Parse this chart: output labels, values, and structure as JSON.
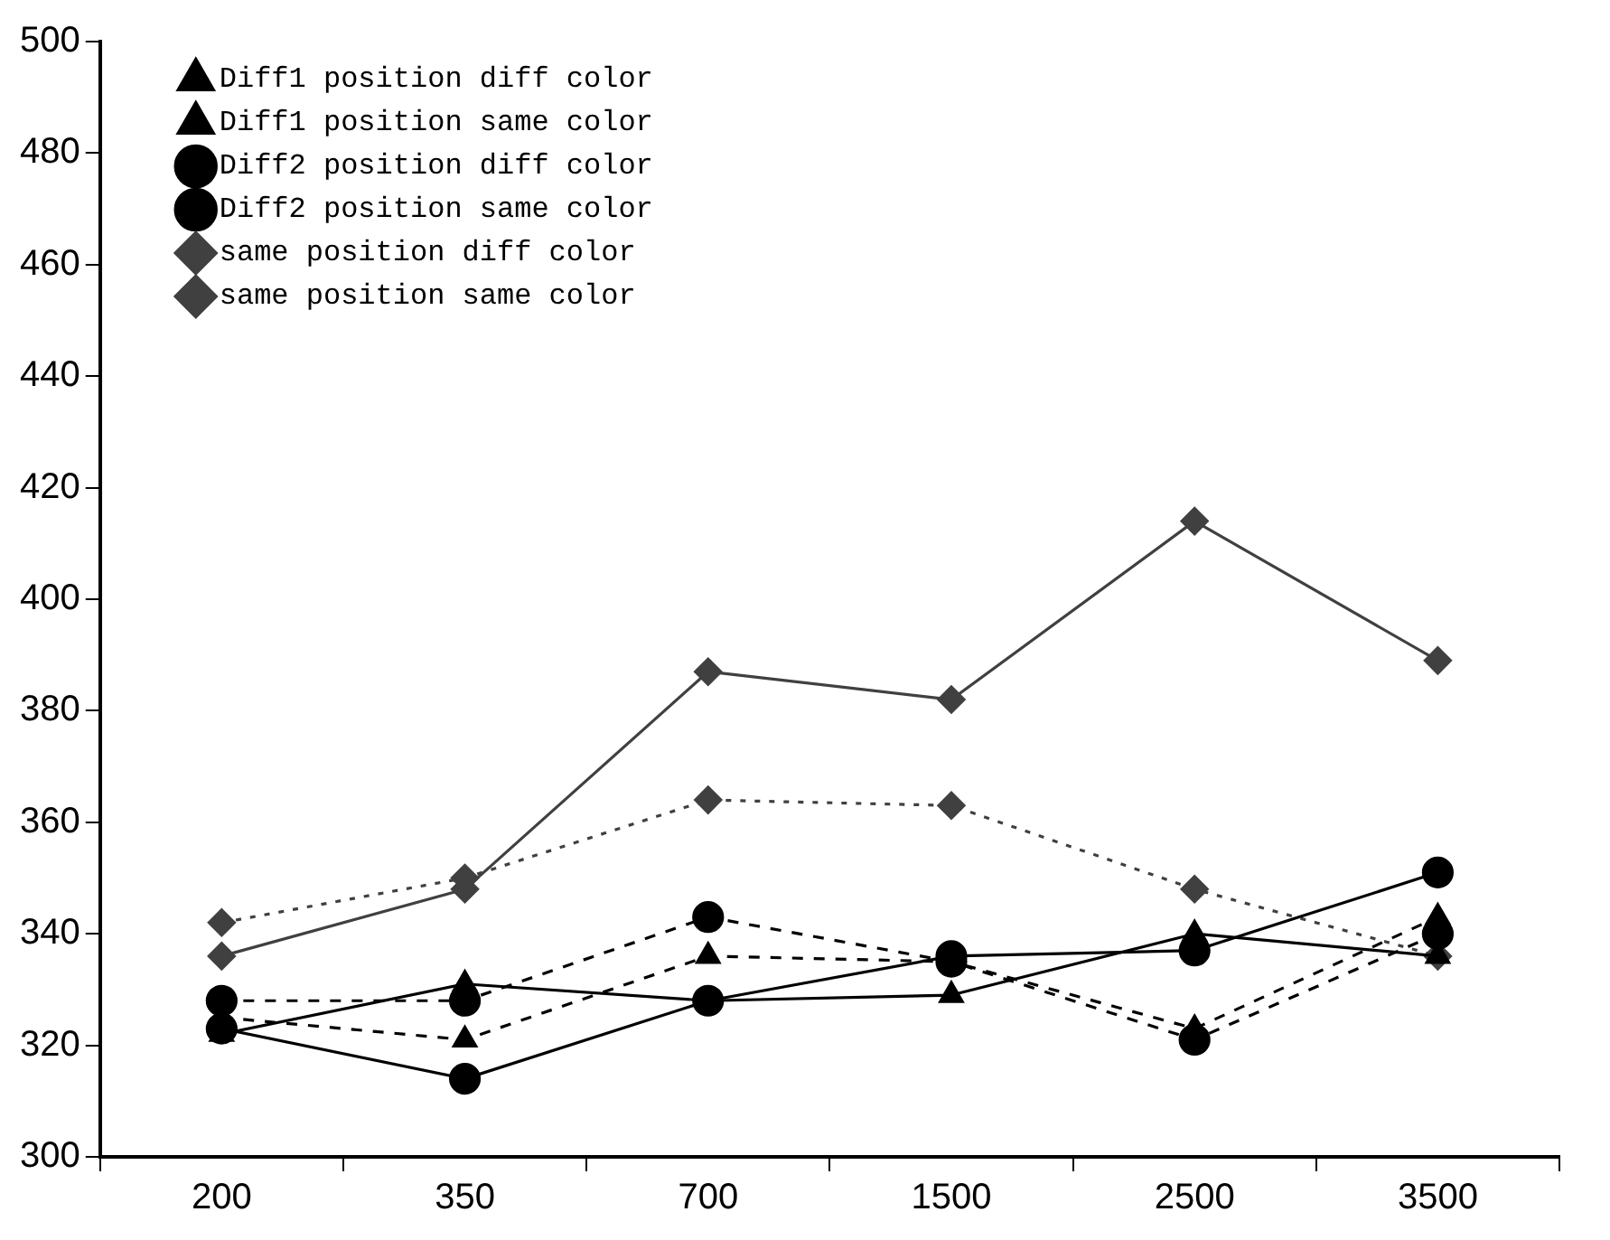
{
  "chart_data": {
    "type": "line",
    "categories": [
      "200",
      "350",
      "700",
      "1500",
      "2500",
      "3500"
    ],
    "ylim": [
      300,
      500
    ],
    "yticks": [
      300,
      320,
      340,
      360,
      380,
      400,
      420,
      440,
      460,
      480,
      500
    ],
    "grid": false,
    "legend": "top left",
    "series": [
      {
        "name": "Diff1 position diff color",
        "color": "#000000",
        "marker": "triangle",
        "line_style": "dashed",
        "values": [
          325,
          321,
          336,
          335,
          323,
          343
        ]
      },
      {
        "name": "Diff1 position same color",
        "color": "#000000",
        "marker": "triangle",
        "line_style": "solid",
        "values": [
          322,
          331,
          328,
          329,
          340,
          336
        ]
      },
      {
        "name": "Diff2 position diff color",
        "color": "#000000",
        "marker": "circle",
        "line_style": "dashed",
        "values": [
          328,
          328,
          343,
          335,
          321,
          340
        ]
      },
      {
        "name": "Diff2 position same color",
        "color": "#000000",
        "marker": "circle",
        "line_style": "solid",
        "values": [
          323,
          314,
          328,
          336,
          337,
          351
        ]
      },
      {
        "name": "same position diff color",
        "color": "#404040",
        "marker": "diamond",
        "line_style": "dotted",
        "values": [
          342,
          350,
          364,
          363,
          348,
          336
        ]
      },
      {
        "name": "same position same color",
        "color": "#404040",
        "marker": "diamond",
        "line_style": "solid",
        "values": [
          336,
          348,
          387,
          382,
          414,
          389
        ]
      }
    ]
  }
}
